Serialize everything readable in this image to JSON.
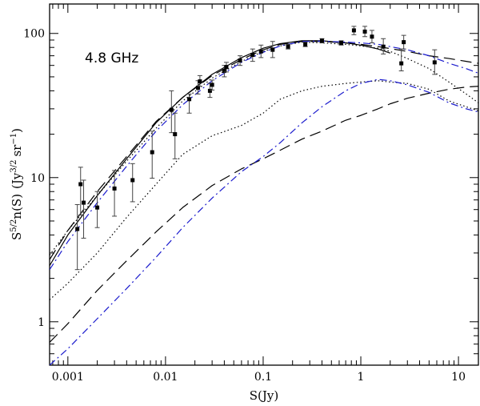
{
  "chart_data": {
    "type": "scatter",
    "title": "",
    "annotation": "4.8 GHz",
    "xlabel": "S(Jy)",
    "ylabel_parts": {
      "s": "S",
      "s_exp": "5/2",
      "n": "n(S)",
      "jy": "(Jy",
      "jy_exp": "3/2",
      "sr": "sr",
      "sr_exp": "−1",
      "close": ")"
    },
    "xscale": "log",
    "yscale": "log",
    "xlim": [
      0.00065,
      16
    ],
    "ylim": [
      0.5,
      160
    ],
    "xticks": [
      {
        "value": 0.001,
        "label": "0.001"
      },
      {
        "value": 0.01,
        "label": "0.01"
      },
      {
        "value": 0.1,
        "label": "0.1"
      },
      {
        "value": 1,
        "label": "1"
      },
      {
        "value": 10,
        "label": "10"
      }
    ],
    "yticks": [
      {
        "value": 1,
        "label": "1"
      },
      {
        "value": 10,
        "label": "10"
      },
      {
        "value": 100,
        "label": "100"
      }
    ],
    "data_points": [
      {
        "x": 0.00125,
        "y": 4.4,
        "lo": 2.3,
        "hi": 6.5
      },
      {
        "x": 0.00135,
        "y": 9.0,
        "lo": 5.5,
        "hi": 11.8
      },
      {
        "x": 0.00145,
        "y": 6.7,
        "lo": 3.8,
        "hi": 9.6
      },
      {
        "x": 0.002,
        "y": 6.2,
        "lo": 4.5,
        "hi": 8.0
      },
      {
        "x": 0.003,
        "y": 8.4,
        "lo": 5.4,
        "hi": 11.2
      },
      {
        "x": 0.0046,
        "y": 9.6,
        "lo": 6.8,
        "hi": 12.5
      },
      {
        "x": 0.0073,
        "y": 15.0,
        "lo": 9.9,
        "hi": 21.0
      },
      {
        "x": 0.0115,
        "y": 29.5,
        "lo": 20.5,
        "hi": 40.0
      },
      {
        "x": 0.0125,
        "y": 20.0,
        "lo": 13.5,
        "hi": 28.0
      },
      {
        "x": 0.0175,
        "y": 35.0,
        "lo": 28.0,
        "hi": 38.0
      },
      {
        "x": 0.0215,
        "y": 42.0,
        "lo": 38.0,
        "hi": 47.0
      },
      {
        "x": 0.0225,
        "y": 46.5,
        "lo": 43.0,
        "hi": 51.0
      },
      {
        "x": 0.0285,
        "y": 40.0,
        "lo": 36.0,
        "hi": 45.0
      },
      {
        "x": 0.03,
        "y": 44.0,
        "lo": 40.5,
        "hi": 47.5
      },
      {
        "x": 0.04,
        "y": 55.0,
        "lo": 50.0,
        "hi": 60.0
      },
      {
        "x": 0.042,
        "y": 58.5,
        "lo": 54.0,
        "hi": 63.0
      },
      {
        "x": 0.058,
        "y": 65.0,
        "lo": 60.0,
        "hi": 70.0
      },
      {
        "x": 0.078,
        "y": 71.0,
        "lo": 64.0,
        "hi": 78.0
      },
      {
        "x": 0.095,
        "y": 75.0,
        "lo": 68.0,
        "hi": 83.0
      },
      {
        "x": 0.125,
        "y": 77.0,
        "lo": 68.0,
        "hi": 88.0
      },
      {
        "x": 0.18,
        "y": 81.0,
        "lo": 78.0,
        "hi": 84.0
      },
      {
        "x": 0.27,
        "y": 84.0,
        "lo": 81.0,
        "hi": 87.0
      },
      {
        "x": 0.4,
        "y": 89.0,
        "lo": 86.0,
        "hi": 92.0
      },
      {
        "x": 0.63,
        "y": 86.0,
        "lo": 83.0,
        "hi": 89.0
      },
      {
        "x": 0.85,
        "y": 105.0,
        "lo": 98.0,
        "hi": 112.0
      },
      {
        "x": 1.1,
        "y": 103.0,
        "lo": 95.0,
        "hi": 112.0
      },
      {
        "x": 1.3,
        "y": 95.0,
        "lo": 86.0,
        "hi": 105.0
      },
      {
        "x": 1.7,
        "y": 81.0,
        "lo": 72.0,
        "hi": 92.0
      },
      {
        "x": 2.6,
        "y": 62.0,
        "lo": 55.0,
        "hi": 78.0
      },
      {
        "x": 2.75,
        "y": 87.0,
        "lo": 78.0,
        "hi": 97.0
      },
      {
        "x": 5.7,
        "y": 63.0,
        "lo": 52.0,
        "hi": 77.0
      }
    ],
    "series": [
      {
        "name": "total-solid",
        "style": "solid",
        "color": "#000000",
        "x": [
          0.00065,
          0.001,
          0.002,
          0.004,
          0.008,
          0.015,
          0.03,
          0.06,
          0.1,
          0.15,
          0.25,
          0.4,
          0.7,
          1.0,
          1.5,
          2.0
        ],
        "y": [
          2.45,
          4.0,
          7.5,
          13.5,
          24.0,
          36.0,
          52.0,
          68.0,
          79.0,
          85.0,
          89.0,
          89.0,
          86.0,
          83.0,
          78.0,
          73.0
        ]
      },
      {
        "name": "total-dashed",
        "style": "dashed",
        "color": "#000000",
        "x": [
          0.00065,
          0.001,
          0.002,
          0.004,
          0.008,
          0.015,
          0.03,
          0.06,
          0.1,
          0.15,
          0.25,
          0.4,
          0.7,
          1.0,
          1.5,
          2.0,
          3.0,
          5.0,
          8.0,
          12.0,
          16.0
        ],
        "y": [
          2.7,
          4.3,
          8.0,
          14.0,
          24.5,
          36.0,
          51.0,
          66.0,
          77.0,
          84.0,
          88.0,
          88.0,
          86.0,
          84.0,
          81.0,
          78.5,
          75.0,
          70.0,
          67.0,
          64.0,
          62.0
        ]
      },
      {
        "name": "total-dotted",
        "style": "dotted",
        "color": "#000000",
        "x": [
          0.00065,
          0.001,
          0.002,
          0.004,
          0.008,
          0.015,
          0.03,
          0.06,
          0.1,
          0.15,
          0.25,
          0.4,
          0.7,
          1.0,
          1.5,
          2.0,
          3.0,
          5.0,
          8.0,
          12.0,
          16.0
        ],
        "y": [
          2.9,
          4.3,
          7.5,
          13.0,
          22.0,
          34.0,
          49.0,
          64.0,
          75.0,
          82.0,
          87.0,
          86.0,
          84.0,
          82.0,
          79.0,
          75.0,
          67.0,
          57.0,
          46.0,
          38.0,
          33.0
        ]
      },
      {
        "name": "total-dashdot-blue",
        "style": "dashdot",
        "color": "#1a1acd",
        "x": [
          0.00065,
          0.001,
          0.002,
          0.004,
          0.008,
          0.015,
          0.03,
          0.06,
          0.1,
          0.15,
          0.25,
          0.4,
          0.7,
          1.0,
          1.5,
          2.0,
          3.0,
          5.0,
          8.0,
          12.0,
          16.0
        ],
        "y": [
          2.3,
          3.6,
          6.7,
          12.0,
          21.0,
          32.0,
          47.0,
          63.0,
          74.0,
          82.0,
          88.0,
          88.5,
          87.0,
          86.0,
          84.0,
          81.0,
          77.0,
          70.0,
          62.0,
          57.0,
          53.0
        ]
      },
      {
        "name": "component-dotted",
        "style": "dotted",
        "color": "#000000",
        "x": [
          0.00065,
          0.001,
          0.002,
          0.004,
          0.008,
          0.015,
          0.03,
          0.06,
          0.1,
          0.15,
          0.25,
          0.4,
          0.7,
          1.0,
          1.5,
          2.0,
          3.0,
          5.0,
          8.0,
          12.0,
          16.0
        ],
        "y": [
          1.42,
          1.85,
          3.0,
          5.3,
          9.0,
          14.5,
          19.5,
          23.0,
          28.0,
          35.0,
          40.0,
          43.0,
          45.0,
          46.0,
          47.0,
          46.0,
          45.0,
          41.0,
          34.0,
          31.0,
          29.0
        ]
      },
      {
        "name": "component-dashed",
        "style": "dashed",
        "color": "#000000",
        "x": [
          0.00065,
          0.001,
          0.002,
          0.004,
          0.008,
          0.015,
          0.03,
          0.06,
          0.1,
          0.15,
          0.25,
          0.4,
          0.7,
          1.0,
          1.5,
          2.0,
          3.0,
          5.0,
          8.0,
          12.0,
          16.0
        ],
        "y": [
          0.72,
          0.97,
          1.65,
          2.65,
          4.2,
          6.2,
          8.8,
          11.5,
          13.5,
          15.5,
          18.5,
          21.0,
          25.0,
          27.0,
          30.0,
          32.5,
          35.5,
          38.5,
          41.0,
          42.5,
          43.0
        ]
      },
      {
        "name": "component-dashdot-blue",
        "style": "dashdot",
        "color": "#1a1acd",
        "x": [
          0.00065,
          0.001,
          0.002,
          0.004,
          0.008,
          0.015,
          0.03,
          0.06,
          0.1,
          0.15,
          0.25,
          0.4,
          0.7,
          1.0,
          1.5,
          2.0,
          3.0,
          5.0,
          8.0,
          12.0,
          16.0
        ],
        "y": [
          0.5,
          0.65,
          1.05,
          1.7,
          2.8,
          4.5,
          7.2,
          11.0,
          14.0,
          17.5,
          24.0,
          31.0,
          40.0,
          45.0,
          48.0,
          47.0,
          44.0,
          39.0,
          33.0,
          30.0,
          28.5
        ]
      }
    ]
  }
}
